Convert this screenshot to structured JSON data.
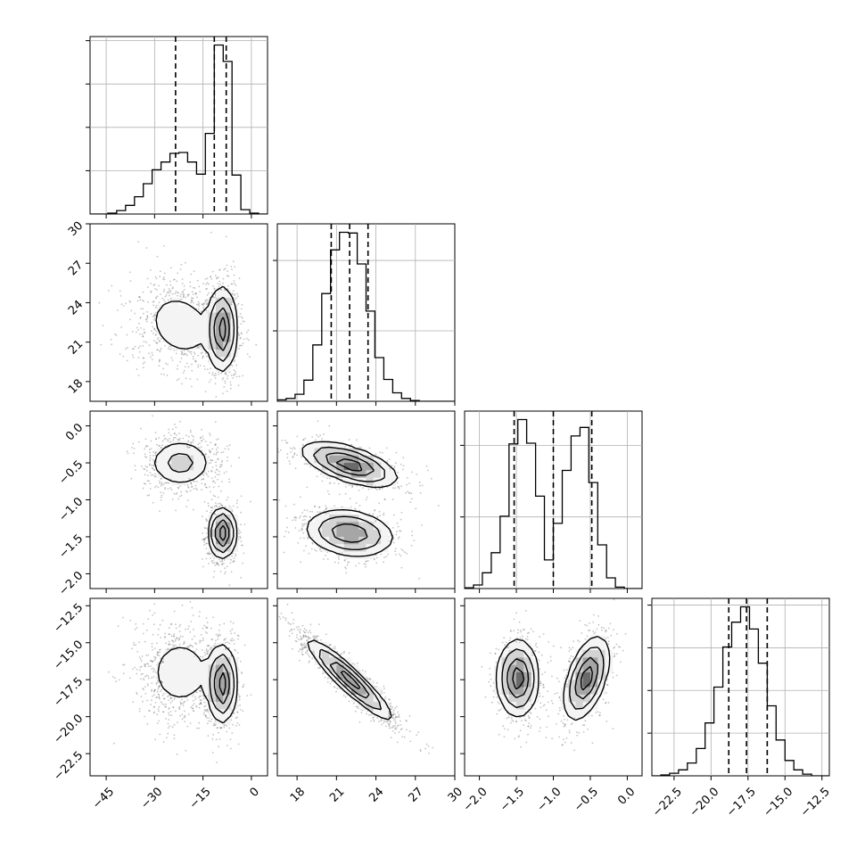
{
  "chart_data": {
    "type": "corner",
    "grid": true,
    "axis_ticks": [
      [
        "−45",
        "−30",
        "−15",
        "0"
      ],
      [
        "18",
        "21",
        "24",
        "27",
        "30"
      ],
      [
        "−2.0",
        "−1.5",
        "−1.0",
        "−0.5",
        "0.0"
      ],
      [
        "−22.5",
        "−20.0",
        "−17.5",
        "−15.0",
        "−12.5"
      ]
    ],
    "axis_tick_values": [
      [
        -45,
        -30,
        -15,
        0
      ],
      [
        18,
        21,
        24,
        27,
        30
      ],
      [
        -2.0,
        -1.5,
        -1.0,
        -0.5,
        0.0
      ],
      [
        -22.5,
        -20.0,
        -17.5,
        -15.0,
        -12.5
      ]
    ],
    "ranges": [
      [
        -50,
        5
      ],
      [
        16.5,
        30
      ],
      [
        -2.2,
        0.2
      ],
      [
        -24,
        -12
      ]
    ],
    "histograms": [
      {
        "param": 0,
        "bin_edges": [
          -50,
          -47.25,
          -44.5,
          -41.75,
          -39,
          -36.25,
          -33.5,
          -30.75,
          -28,
          -25.25,
          -22.5,
          -19.75,
          -17,
          -14.25,
          -11.5,
          -8.75,
          -6,
          -3.25,
          -0.5,
          2.25,
          5
        ],
        "counts": [
          0,
          0,
          1,
          4,
          10,
          20,
          35,
          51,
          60,
          70,
          71,
          60,
          46,
          93,
          195,
          176,
          45,
          5,
          1,
          0
        ],
        "quantiles": [
          -23.5,
          -11.5,
          -7.8
        ]
      },
      {
        "param": 1,
        "bin_edges": [
          16.5,
          17.175,
          17.85,
          18.525,
          19.2,
          19.875,
          20.55,
          21.225,
          21.9,
          22.575,
          23.25,
          23.925,
          24.6,
          25.275,
          25.95,
          26.625,
          27.3,
          27.975,
          28.65,
          29.325,
          30
        ],
        "counts": [
          2,
          4,
          10,
          30,
          80,
          153,
          215,
          240,
          239,
          195,
          128,
          62,
          31,
          12,
          4,
          1,
          0,
          0,
          0,
          0
        ],
        "quantiles": [
          20.6,
          22.0,
          23.4
        ]
      },
      {
        "param": 2,
        "bin_edges": [
          -2.2,
          -2.08,
          -1.96,
          -1.84,
          -1.72,
          -1.6,
          -1.48,
          -1.36,
          -1.24,
          -1.12,
          -1.0,
          -0.88,
          -0.76,
          -0.64,
          -0.52,
          -0.4,
          -0.28,
          -0.16,
          -0.04,
          0.08,
          0.2
        ],
        "counts": [
          1,
          5,
          22,
          50,
          101,
          202,
          236,
          203,
          129,
          40,
          91,
          165,
          213,
          225,
          148,
          61,
          15,
          2,
          0,
          0
        ],
        "quantiles": [
          -1.53,
          -1.0,
          -0.48
        ]
      },
      {
        "param": 3,
        "bin_edges": [
          -24,
          -23.4,
          -22.8,
          -22.2,
          -21.6,
          -21.0,
          -20.4,
          -19.8,
          -19.2,
          -18.6,
          -18.0,
          -17.4,
          -16.8,
          -16.2,
          -15.6,
          -15.0,
          -14.4,
          -13.8,
          -13.2,
          -12.6,
          -12
        ],
        "counts": [
          0,
          1,
          3,
          7,
          15,
          32,
          62,
          104,
          151,
          180,
          198,
          172,
          132,
          82,
          42,
          18,
          7,
          2,
          0,
          0
        ],
        "quantiles": [
          -18.8,
          -17.6,
          -16.2
        ]
      }
    ],
    "pairs": [
      {
        "x": 0,
        "y": 1,
        "modes": [
          {
            "mx": -22,
            "my": 22.3,
            "sx": 7.0,
            "sy": 1.7,
            "rho": -0.2,
            "w": 0.45
          },
          {
            "mx": -9,
            "my": 22.0,
            "sx": 2.2,
            "sy": 1.6,
            "rho": 0.0,
            "w": 0.55
          }
        ]
      },
      {
        "x": 0,
        "y": 2,
        "modes": [
          {
            "mx": -22,
            "my": -0.5,
            "sx": 5.2,
            "sy": 0.17,
            "rho": 0.0,
            "w": 0.5
          },
          {
            "mx": -9,
            "my": -1.45,
            "sx": 2.1,
            "sy": 0.17,
            "rho": 0.0,
            "w": 0.5
          }
        ]
      },
      {
        "x": 0,
        "y": 3,
        "modes": [
          {
            "mx": -22,
            "my": -17.0,
            "sx": 6.2,
            "sy": 1.5,
            "rho": 0.0,
            "w": 0.45
          },
          {
            "mx": -9,
            "my": -17.8,
            "sx": 2.2,
            "sy": 1.3,
            "rho": 0.0,
            "w": 0.55
          }
        ]
      },
      {
        "x": 1,
        "y": 2,
        "modes": [
          {
            "mx": 22,
            "my": -0.52,
            "sx": 1.8,
            "sy": 0.15,
            "rho": -0.6,
            "w": 0.5
          },
          {
            "mx": 22,
            "my": -1.45,
            "sx": 1.7,
            "sy": 0.16,
            "rho": -0.2,
            "w": 0.5
          }
        ]
      },
      {
        "x": 1,
        "y": 3,
        "modes": [
          {
            "mx": 22,
            "my": -17.5,
            "sx": 1.6,
            "sy": 1.35,
            "rho": -0.93,
            "w": 1.0
          }
        ]
      },
      {
        "x": 2,
        "y": 3,
        "modes": [
          {
            "mx": -1.48,
            "my": -17.4,
            "sx": 0.14,
            "sy": 1.3,
            "rho": 0.0,
            "w": 0.5
          },
          {
            "mx": -0.55,
            "my": -17.4,
            "sx": 0.15,
            "sy": 1.4,
            "rho": 0.5,
            "w": 0.5
          }
        ]
      }
    ]
  }
}
